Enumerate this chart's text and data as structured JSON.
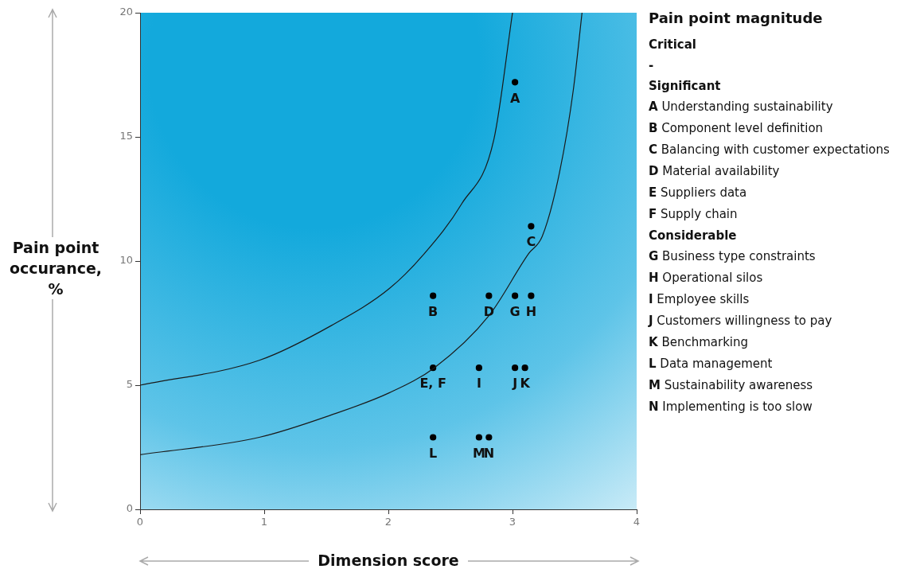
{
  "chart_data": {
    "type": "scatter",
    "xlabel": "Dimension score",
    "ylabel": "Pain point occurance, %",
    "legend_title": "Pain point magnitude",
    "xlim": [
      0,
      4
    ],
    "xticks": [
      0,
      1,
      2,
      3,
      4
    ],
    "ylim": [
      0,
      20
    ],
    "yticks": [
      0,
      5,
      10,
      15,
      20
    ],
    "marker": "circle",
    "series": [
      {
        "type": "line",
        "color": "#1a1a1a",
        "marker": "none",
        "x": [
          0,
          0.96,
          1.54,
          2.01,
          2.29,
          2.59,
          2.85,
          3.0
        ],
        "values": [
          5,
          6,
          7.4,
          8.9,
          10.3,
          12.3,
          14.9,
          20
        ]
      },
      {
        "type": "line",
        "color": "#1a1a1a",
        "marker": "none",
        "x": [
          0,
          0.96,
          1.54,
          2.01,
          2.37,
          2.81,
          3.13,
          3.24,
          3.38,
          3.49,
          3.56
        ],
        "values": [
          2.2,
          2.9,
          3.8,
          4.7,
          5.7,
          7.8,
          10.3,
          11,
          13.6,
          16.9,
          20
        ]
      },
      {
        "color": "#000000",
        "x": [
          3.02,
          2.36,
          3.15,
          2.81,
          3.02,
          3.15,
          2.36,
          2.73,
          3.02,
          3.1,
          2.36,
          2.73,
          2.81
        ],
        "values": [
          17.2,
          8.6,
          11.4,
          8.6,
          8.6,
          8.6,
          5.7,
          5.7,
          5.7,
          5.7,
          2.9,
          2.9,
          2.9
        ],
        "value_labels": [
          "A",
          "B",
          "C",
          "D",
          "G",
          "H",
          "E, F",
          "I",
          "J",
          "K",
          "L",
          "M",
          "N"
        ]
      }
    ],
    "annotations": [
      "Critical",
      "-",
      "Significant",
      "A Understanding sustainability",
      "B Component level definition",
      "C Balancing with customer expectations",
      "D Material availability",
      "E Suppliers data",
      "F Supply chain",
      "Considerable",
      "G Business type constraints",
      "H Operational silos",
      "I Employee skills",
      "J Customers willingness to pay",
      "K Benchmarking",
      "L Data management",
      "M Sustainability awareness",
      "N Implementing is too slow"
    ]
  }
}
